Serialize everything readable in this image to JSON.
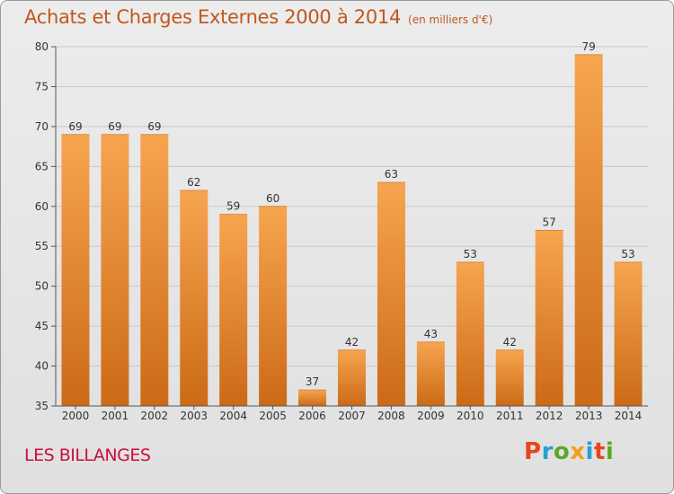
{
  "header": {
    "title": "Achats et Charges Externes 2000 à 2014",
    "unit": "(en milliers d'€)"
  },
  "footer": {
    "subject": "LES BILLANGES",
    "logo_text": "Proxiti"
  },
  "colors": {
    "title": "#c0581c",
    "subject": "#c8103c",
    "bar_light": "#f7a550",
    "bar_dark": "#cc6a16",
    "logo": [
      "#e8451e",
      "#2a9fd6",
      "#5aa829",
      "#f0a21a",
      "#2a9fd6",
      "#e8451e",
      "#5aa829"
    ]
  },
  "chart_data": {
    "type": "bar",
    "categories": [
      "2000",
      "2001",
      "2002",
      "2003",
      "2004",
      "2005",
      "2006",
      "2007",
      "2008",
      "2009",
      "2010",
      "2011",
      "2012",
      "2013",
      "2014"
    ],
    "values": [
      69,
      69,
      69,
      62,
      59,
      60,
      37,
      42,
      63,
      43,
      53,
      42,
      57,
      79,
      53
    ],
    "ylim": [
      35,
      80
    ],
    "yticks": [
      35,
      40,
      45,
      50,
      55,
      60,
      65,
      70,
      75,
      80
    ],
    "grid": true,
    "legend": "none"
  }
}
